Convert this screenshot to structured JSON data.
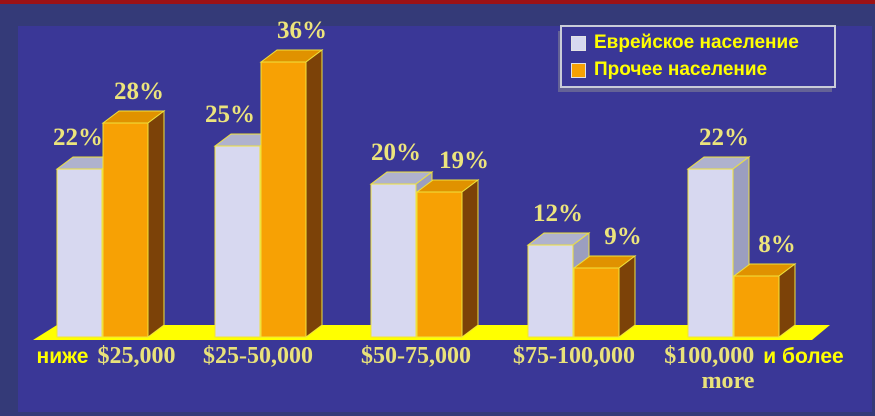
{
  "chart_data": {
    "type": "bar",
    "style": "3d-bars",
    "categories": [
      "ниже $25,000",
      "$25-50,000",
      "$50-75,000",
      "$75-100,000",
      "$100,000 и более (more)"
    ],
    "series": [
      {
        "name": "Еврейское население",
        "values": [
          22,
          25,
          20,
          12,
          22
        ],
        "color": "#D7D8F0"
      },
      {
        "name": "Прочее население",
        "values": [
          28,
          36,
          19,
          9,
          8
        ],
        "color": "#F7A104"
      }
    ],
    "value_labels": [
      [
        "22%",
        "25%",
        "20%",
        "12%",
        "22%"
      ],
      [
        "28%",
        "36%",
        "19%",
        "9%",
        "8%"
      ]
    ],
    "unit": "%",
    "ylim": [
      0,
      40
    ],
    "grid": false,
    "axes_shown": false,
    "legend_position": "top-right",
    "floor": "yellow-3d-platform"
  },
  "categories_rich": [
    {
      "lines": [
        [
          {
            "text": "ниже",
            "style": "sans"
          },
          {
            "text": "$25,000",
            "style": "serif"
          }
        ]
      ]
    },
    {
      "lines": [
        [
          {
            "text": "$25-50,000",
            "style": "serif"
          }
        ]
      ]
    },
    {
      "lines": [
        [
          {
            "text": "$50-75,000",
            "style": "serif"
          }
        ]
      ]
    },
    {
      "lines": [
        [
          {
            "text": "$75-100,000",
            "style": "serif"
          }
        ]
      ]
    },
    {
      "lines": [
        [
          {
            "text": "$100,000",
            "style": "serif"
          },
          {
            "text": "и более",
            "style": "sans"
          }
        ],
        [
          {
            "text": "more",
            "style": "serif"
          }
        ]
      ]
    }
  ],
  "legend": {
    "items": [
      {
        "label": "Еврейское население",
        "color": "#D7D8F0"
      },
      {
        "label": "Прочее население",
        "color": "#F7A104"
      }
    ]
  },
  "colors": {
    "background": "#343A78",
    "panel": "#3A3797",
    "top_stripe": "#9C1216",
    "floor": "#FFFF00",
    "bar_edge": "#EFE23C",
    "series1_front": "#D7D8F0",
    "series1_top": "#AFB2CE",
    "series1_side": "#9B9EC0",
    "series2_front": "#F7A104",
    "series2_top": "#E09200",
    "series2_side": "#7C4208",
    "value_label": "#ECE47C",
    "axis_label_serif": "#E9E27A",
    "axis_label_sans": "#FFFF00",
    "legend_text": "#FFFF00",
    "legend_border": "#C9CCD8"
  }
}
